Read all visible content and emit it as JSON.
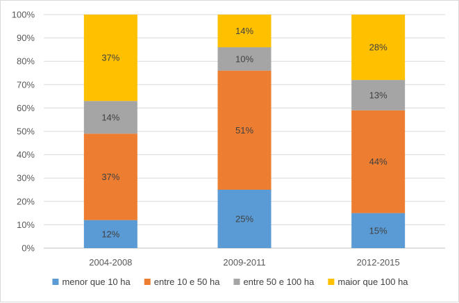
{
  "chart_data": {
    "type": "bar",
    "stacked": true,
    "percent": true,
    "categories": [
      "2004-2008",
      "2009-2011",
      "2012-2015"
    ],
    "series": [
      {
        "name": "menor que 10 ha",
        "color": "#5b9bd5",
        "values": [
          12,
          25,
          15
        ],
        "labels": [
          "12%",
          "25%",
          "15%"
        ]
      },
      {
        "name": "entre 10 e 50 ha",
        "color": "#ed7d31",
        "values": [
          37,
          51,
          44
        ],
        "labels": [
          "37%",
          "51%",
          "44%"
        ]
      },
      {
        "name": "entre 50 e 100 ha",
        "color": "#a5a5a5",
        "values": [
          14,
          10,
          13
        ],
        "labels": [
          "14%",
          "10%",
          "13%"
        ]
      },
      {
        "name": "maior que 100 ha",
        "color": "#ffc000",
        "values": [
          37,
          14,
          28
        ],
        "labels": [
          "37%",
          "14%",
          "28%"
        ]
      }
    ],
    "y_ticks": [
      "0%",
      "10%",
      "20%",
      "30%",
      "40%",
      "50%",
      "60%",
      "70%",
      "80%",
      "90%",
      "100%"
    ],
    "ylim": [
      0,
      100
    ],
    "grid": true,
    "legend": "bottom",
    "title": "",
    "xlabel": "",
    "ylabel": ""
  }
}
